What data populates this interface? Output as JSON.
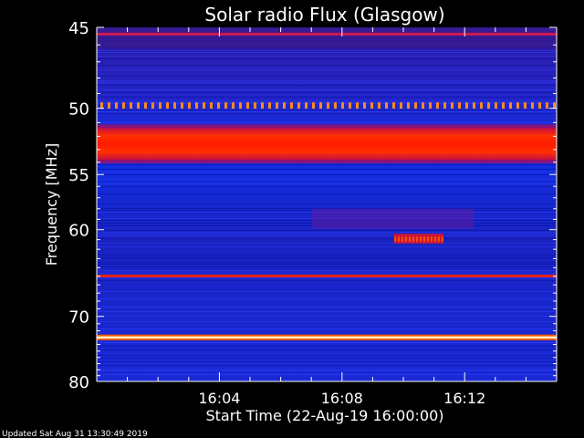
{
  "chart_data": {
    "type": "heatmap",
    "title": "Solar radio Flux (Glasgow)",
    "ylabel": "Frequency [MHz]",
    "xlabel": "Start Time (22-Aug-19 16:00:00)",
    "footer": "Updated Sat Aug 31 13:30:49 2019",
    "y_scale": "reciprocal",
    "y_range_mhz": [
      45,
      80
    ],
    "y_ticks": [
      {
        "value": 45,
        "label": "45"
      },
      {
        "value": 50,
        "label": "50"
      },
      {
        "value": 55,
        "label": "55"
      },
      {
        "value": 60,
        "label": "60"
      },
      {
        "value": 70,
        "label": "70"
      },
      {
        "value": 80,
        "label": "80"
      }
    ],
    "x_range_minutes": [
      0,
      15
    ],
    "x_ticks": [
      {
        "value": 4,
        "label": "16:04"
      },
      {
        "value": 8,
        "label": "16:08"
      },
      {
        "value": 12,
        "label": "16:12"
      }
    ],
    "grid": false,
    "legend": "none",
    "colors": {
      "background": "#1c1fc8",
      "strong": "#ff2a00",
      "peak": "#fff8d0",
      "medium": "#d21a6a"
    },
    "emission_bands_mhz": [
      {
        "low": 51.4,
        "high": 53.8,
        "level": "strong"
      },
      {
        "low": 49.6,
        "high": 49.9,
        "level": "medium-dotted"
      },
      {
        "low": 64.8,
        "high": 65.1,
        "level": "strong"
      },
      {
        "low": 72.8,
        "high": 73.1,
        "level": "peak"
      }
    ],
    "bursts": [
      {
        "t_start": 9.7,
        "t_end": 11.3,
        "f_low": 60.4,
        "f_high": 61.4,
        "level": "strong"
      },
      {
        "t_start": 7.0,
        "t_end": 12.3,
        "f_low": 58.0,
        "f_high": 59.9,
        "level": "faint"
      }
    ]
  }
}
